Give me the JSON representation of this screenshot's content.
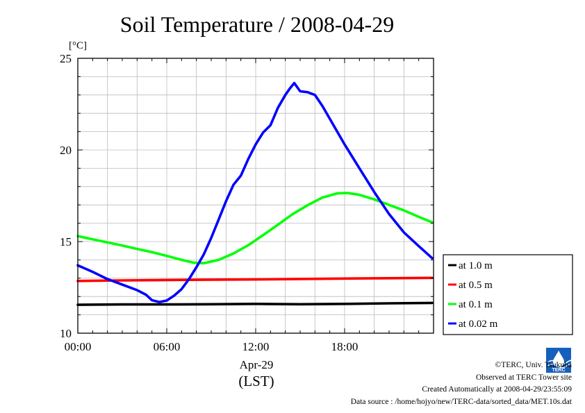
{
  "chart_data": {
    "type": "line",
    "title": "Soil Temperature / 2008-04-29",
    "ylabel": "[°C]",
    "xlabel_date": "Apr-29",
    "xlabel_tz": "(LST)",
    "xlim": [
      0,
      24
    ],
    "ylim": [
      10,
      25
    ],
    "yticks": [
      10,
      15,
      20,
      25
    ],
    "ytick_labels": [
      "10",
      "15",
      "20",
      "25"
    ],
    "xticks": [
      0,
      6,
      12,
      18
    ],
    "xtick_labels": [
      "00:00",
      "06:00",
      "12:00",
      "18:00"
    ],
    "grid": true,
    "legend_position": "right",
    "series": [
      {
        "name": "at 1.0 m",
        "color": "#000000",
        "points": [
          [
            0,
            11.55
          ],
          [
            3,
            11.57
          ],
          [
            6,
            11.57
          ],
          [
            9,
            11.58
          ],
          [
            12,
            11.6
          ],
          [
            15,
            11.58
          ],
          [
            18,
            11.6
          ],
          [
            21,
            11.63
          ],
          [
            23.9,
            11.65
          ]
        ]
      },
      {
        "name": "at 0.5 m",
        "color": "#ff0000",
        "points": [
          [
            0,
            12.85
          ],
          [
            3,
            12.88
          ],
          [
            6,
            12.9
          ],
          [
            9,
            12.92
          ],
          [
            12,
            12.93
          ],
          [
            15,
            12.96
          ],
          [
            18,
            12.98
          ],
          [
            21,
            13.0
          ],
          [
            23.9,
            13.02
          ]
        ]
      },
      {
        "name": "at 0.1 m",
        "color": "#00ff00",
        "points": [
          [
            0,
            15.3
          ],
          [
            1,
            15.12
          ],
          [
            2,
            14.95
          ],
          [
            3,
            14.78
          ],
          [
            4,
            14.6
          ],
          [
            5,
            14.42
          ],
          [
            6,
            14.22
          ],
          [
            7,
            14.0
          ],
          [
            7.8,
            13.85
          ],
          [
            8.5,
            13.82
          ],
          [
            9.5,
            14.0
          ],
          [
            10.5,
            14.35
          ],
          [
            11.5,
            14.8
          ],
          [
            12.5,
            15.35
          ],
          [
            13.5,
            15.92
          ],
          [
            14.5,
            16.5
          ],
          [
            15.5,
            16.98
          ],
          [
            16.5,
            17.4
          ],
          [
            17.5,
            17.63
          ],
          [
            18.2,
            17.65
          ],
          [
            19,
            17.55
          ],
          [
            20,
            17.3
          ],
          [
            21,
            17.0
          ],
          [
            22,
            16.7
          ],
          [
            23,
            16.35
          ],
          [
            23.9,
            16.05
          ]
        ]
      },
      {
        "name": "at 0.02 m",
        "color": "#0000ff",
        "points": [
          [
            0,
            13.7
          ],
          [
            1,
            13.35
          ],
          [
            2,
            12.95
          ],
          [
            3,
            12.65
          ],
          [
            4,
            12.35
          ],
          [
            4.6,
            12.1
          ],
          [
            5,
            11.8
          ],
          [
            5.5,
            11.7
          ],
          [
            6,
            11.78
          ],
          [
            6.5,
            12.05
          ],
          [
            7,
            12.4
          ],
          [
            7.5,
            12.95
          ],
          [
            8,
            13.6
          ],
          [
            8.5,
            14.3
          ],
          [
            9,
            15.2
          ],
          [
            9.5,
            16.2
          ],
          [
            10,
            17.2
          ],
          [
            10.5,
            18.1
          ],
          [
            11,
            18.6
          ],
          [
            11.5,
            19.5
          ],
          [
            12,
            20.3
          ],
          [
            12.5,
            20.95
          ],
          [
            13,
            21.35
          ],
          [
            13.5,
            22.3
          ],
          [
            14,
            23.0
          ],
          [
            14.3,
            23.35
          ],
          [
            14.6,
            23.65
          ],
          [
            15,
            23.2
          ],
          [
            15.5,
            23.15
          ],
          [
            16,
            23.0
          ],
          [
            16.5,
            22.4
          ],
          [
            17,
            21.7
          ],
          [
            18,
            20.3
          ],
          [
            19,
            19.0
          ],
          [
            20,
            17.7
          ],
          [
            21,
            16.5
          ],
          [
            22,
            15.5
          ],
          [
            23,
            14.75
          ],
          [
            23.9,
            14.1
          ]
        ]
      }
    ]
  },
  "footer": {
    "copyright": "©TERC, Univ. Tsukuba",
    "observed": "Observed at TERC Tower site",
    "created": "Created Automatically at 2008-04-29/23:55:09",
    "source": "Data source : /home/hojyo/new/TERC-data/sorted_data/MET.10s.dat",
    "logo_text": "TERC"
  }
}
